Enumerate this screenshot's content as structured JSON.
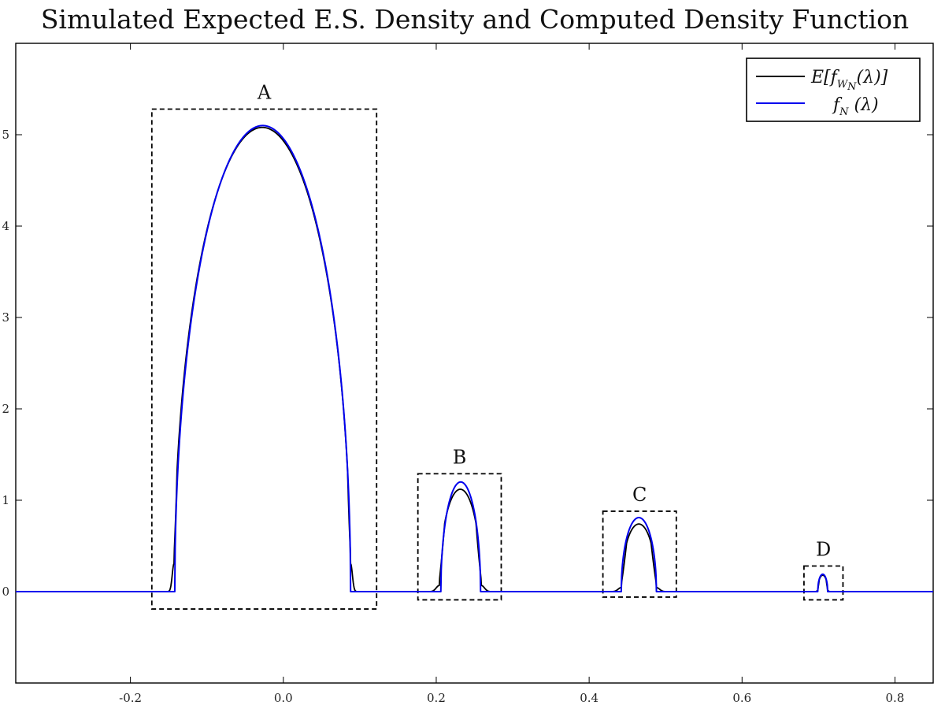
{
  "chart_data": {
    "type": "line",
    "title": "Simulated Expected E.S. Density and Computed Density Function",
    "xlabel": "",
    "ylabel": "",
    "xlim": [
      -0.35,
      0.85
    ],
    "ylim": [
      -1,
      6
    ],
    "x_ticks": [
      -0.2,
      0.0,
      0.2,
      0.4,
      0.6,
      0.8
    ],
    "x_tick_labels": [
      "-0.2",
      "0.0",
      "0.2",
      "0.4",
      "0.6",
      "0.8"
    ],
    "y_ticks": [
      0,
      1,
      2,
      3,
      4,
      5
    ],
    "y_tick_labels": [
      "0",
      "1",
      "2",
      "3",
      "4",
      "5"
    ],
    "grid": false,
    "legend_position": "top-right",
    "series": [
      {
        "name": "E[f_{W_N}(λ)]",
        "color": "#000000",
        "bumps": [
          {
            "x0": -0.143,
            "x1": 0.088,
            "peak_x": -0.025,
            "peak_y": 5.08,
            "smooth": 0.004
          },
          {
            "x0": 0.204,
            "x1": 0.259,
            "peak_x": 0.232,
            "peak_y": 1.12,
            "smooth": 0.007
          },
          {
            "x0": 0.442,
            "x1": 0.488,
            "peak_x": 0.466,
            "peak_y": 0.74,
            "smooth": 0.007
          },
          {
            "x0": 0.699,
            "x1": 0.712,
            "peak_x": 0.706,
            "peak_y": 0.18,
            "smooth": 0.002
          }
        ]
      },
      {
        "name": "f_N (λ)",
        "color": "#0000ee",
        "bumps": [
          {
            "x0": -0.142,
            "x1": 0.088,
            "peak_x": -0.027,
            "peak_y": 5.1,
            "smooth": 0
          },
          {
            "x0": 0.206,
            "x1": 0.258,
            "peak_x": 0.232,
            "peak_y": 1.2,
            "smooth": 0
          },
          {
            "x0": 0.442,
            "x1": 0.488,
            "peak_x": 0.466,
            "peak_y": 0.81,
            "smooth": 0
          },
          {
            "x0": 0.699,
            "x1": 0.712,
            "peak_x": 0.706,
            "peak_y": 0.19,
            "smooth": 0
          }
        ]
      }
    ],
    "annotations": [
      {
        "label": "A",
        "box_x": [
          -0.172,
          0.122
        ],
        "box_y": [
          -0.19,
          5.28
        ]
      },
      {
        "label": "B",
        "box_x": [
          0.176,
          0.285
        ],
        "box_y": [
          -0.09,
          1.29
        ]
      },
      {
        "label": "C",
        "box_x": [
          0.418,
          0.514
        ],
        "box_y": [
          -0.06,
          0.88
        ]
      },
      {
        "label": "D",
        "box_x": [
          0.681,
          0.732
        ],
        "box_y": [
          -0.09,
          0.28
        ]
      }
    ]
  }
}
